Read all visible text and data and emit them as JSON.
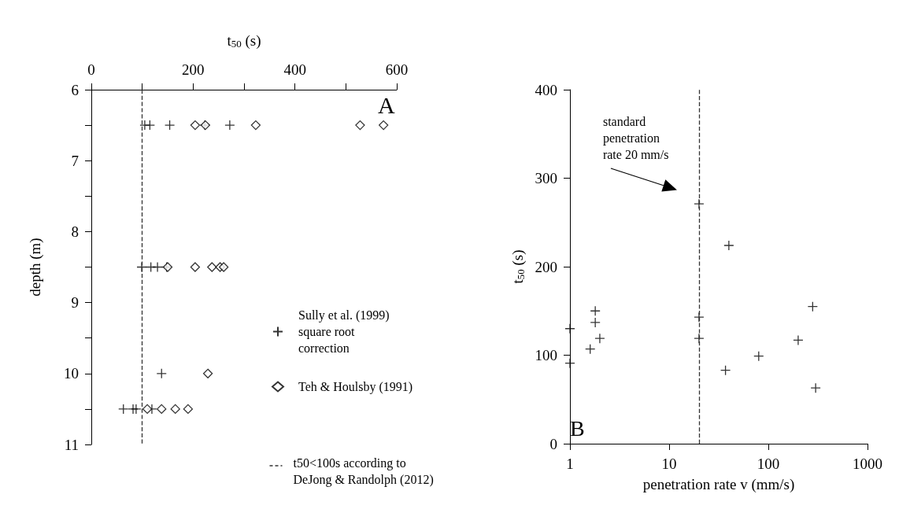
{
  "chart_data": [
    {
      "type": "scatter",
      "xlabel": "t$_{50}$ (s)",
      "ylabel": "depth (m)",
      "xlim": [
        0,
        600
      ],
      "xticks": [
        0,
        {
          "value": 100,
          "label": null
        },
        200,
        {
          "value": 300,
          "label": null
        },
        400,
        {
          "value": 500,
          "label": null
        },
        600
      ],
      "ylim": [
        11,
        6
      ],
      "yticks": [
        6,
        {
          "value": 6.5,
          "label": null
        },
        7,
        {
          "value": 7.5,
          "label": null
        },
        8,
        {
          "value": 8.5,
          "label": null
        },
        9,
        {
          "value": 9.5,
          "label": null
        },
        10,
        {
          "value": 10.5,
          "label": null
        },
        11
      ],
      "grid": false,
      "legend": "right",
      "series": [
        {
          "name": "Sully et al. (1999)\nsquare root\ncorrection",
          "color": "#000000",
          "marker": "cross",
          "x": [
            105,
            115,
            154,
            223,
            272,
            99,
            117,
            130,
            148,
            138,
            63,
            82,
            88,
            119
          ],
          "values": [
            6.5,
            6.5,
            6.5,
            6.5,
            6.5,
            8.5,
            8.5,
            8.5,
            8.5,
            10,
            10.5,
            10.5,
            10.5,
            10.5
          ]
        },
        {
          "name": "Teh & Houlsby (1991)",
          "color": "#000000",
          "marker": "diamond",
          "x": [
            204,
            224,
            323,
            528,
            574,
            150,
            204,
            237,
            253,
            260,
            229,
            110,
            138,
            165,
            190
          ],
          "values": [
            6.5,
            6.5,
            6.5,
            6.5,
            6.5,
            8.5,
            8.5,
            8.5,
            8.5,
            8.5,
            10,
            10.5,
            10.5,
            10.5,
            10.5
          ]
        }
      ],
      "ref_lines": [
        {
          "axis": "x",
          "value": 100,
          "label": "t50<100s according to\nDeJong & Randolph (2012)",
          "color": "#333333",
          "line_style": "dashed"
        }
      ],
      "annotations": [
        "A"
      ]
    },
    {
      "type": "scatter",
      "xlabel": "penetration rate v (mm/s)",
      "ylabel": "t$_{50}$ (s)",
      "log": "x",
      "xlim": [
        1,
        1000
      ],
      "xticks": [
        1,
        10,
        100,
        1000
      ],
      "ylim": [
        0,
        400
      ],
      "yticks": [
        0,
        100,
        200,
        300,
        400
      ],
      "grid": false,
      "marker": "cross",
      "series": [
        {
          "color": "#000000",
          "x": [
            20,
            40,
            1,
            1,
            1.8,
            1.8,
            2,
            1.6,
            20,
            20,
            37,
            80,
            200,
            280,
            300
          ],
          "values": [
            271,
            224,
            130,
            91,
            150,
            137,
            119,
            107,
            143,
            119,
            83,
            99,
            117,
            155,
            63
          ]
        }
      ],
      "ref_lines": [
        {
          "axis": "x",
          "value": 20,
          "label": "standard\npenetration\nrate 20 mm/s",
          "color": "#333333",
          "line_style": "dashed"
        }
      ],
      "annotations": [
        "B"
      ]
    }
  ]
}
